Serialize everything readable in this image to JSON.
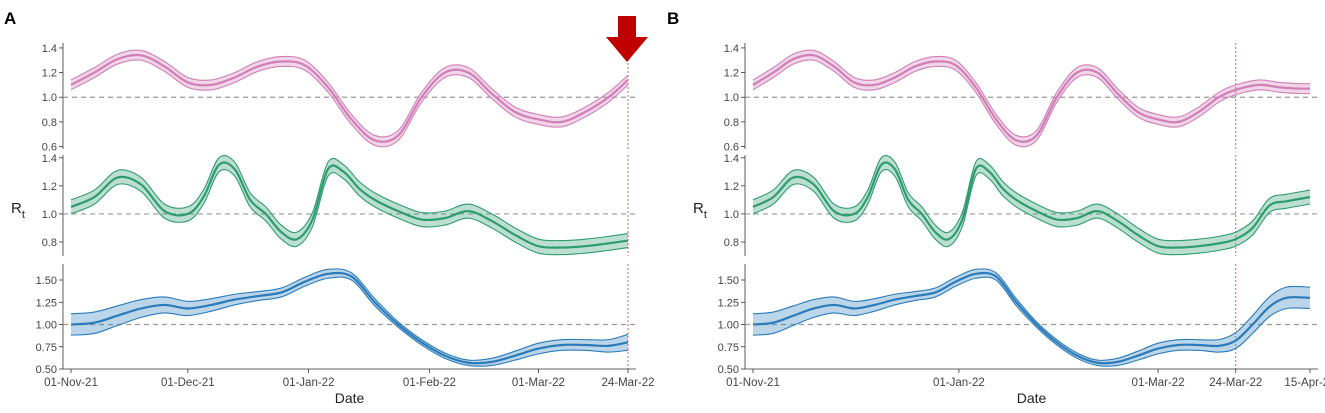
{
  "chart_data": [
    {
      "type": "line",
      "panel_label": "A",
      "xlabel": "Date",
      "ylabel": "Rt",
      "x_range_days": [
        0,
        143
      ],
      "x_ticks": [
        {
          "day": 0,
          "label": "01-Nov-21"
        },
        {
          "day": 30,
          "label": "01-Dec-21"
        },
        {
          "day": 61,
          "label": "01-Jan-22"
        },
        {
          "day": 92,
          "label": "01-Feb-22"
        },
        {
          "day": 120,
          "label": "01-Mar-22"
        },
        {
          "day": 143,
          "label": "24-Mar-22"
        }
      ],
      "vline_day": 143,
      "annotation": "down-arrow marking 24-Mar-22",
      "series": [
        {
          "name": "series-1",
          "color": "#d17fb7",
          "ylim": [
            0.58,
            1.44
          ],
          "yticks": [
            "0.6",
            "0.8",
            "1.0",
            "1.2",
            "1.4"
          ],
          "x": [
            0,
            6,
            12,
            18,
            24,
            30,
            36,
            42,
            48,
            54,
            60,
            66,
            72,
            78,
            84,
            90,
            96,
            102,
            108,
            114,
            120,
            126,
            132,
            138,
            143
          ],
          "mean": [
            1.1,
            1.2,
            1.31,
            1.34,
            1.25,
            1.12,
            1.1,
            1.16,
            1.25,
            1.29,
            1.26,
            1.08,
            0.82,
            0.65,
            0.69,
            1.0,
            1.2,
            1.2,
            1.03,
            0.88,
            0.82,
            0.8,
            0.88,
            1.0,
            1.14
          ],
          "halfwidth": 0.04
        },
        {
          "name": "series-2",
          "color": "#2e9c6f",
          "ylim": [
            0.7,
            1.42
          ],
          "yticks": [
            "0.8",
            "1.0",
            "1.2",
            "1.4"
          ],
          "x": [
            0,
            6,
            12,
            18,
            24,
            30,
            34,
            38,
            42,
            46,
            50,
            54,
            58,
            62,
            66,
            70,
            74,
            78,
            84,
            90,
            96,
            102,
            108,
            114,
            120,
            126,
            132,
            138,
            143
          ],
          "mean": [
            1.05,
            1.12,
            1.26,
            1.21,
            1.02,
            1.0,
            1.12,
            1.35,
            1.32,
            1.1,
            1.0,
            0.87,
            0.82,
            0.96,
            1.32,
            1.3,
            1.18,
            1.1,
            1.02,
            0.96,
            0.97,
            1.02,
            0.95,
            0.85,
            0.77,
            0.76,
            0.77,
            0.79,
            0.81
          ],
          "halfwidth": 0.05
        },
        {
          "name": "series-3",
          "color": "#2b7bba",
          "ylim": [
            0.5,
            1.68
          ],
          "yticks": [
            "0.50",
            "0.75",
            "1.00",
            "1.25",
            "1.50"
          ],
          "x": [
            0,
            6,
            12,
            18,
            24,
            30,
            36,
            42,
            48,
            54,
            60,
            66,
            72,
            78,
            84,
            90,
            96,
            102,
            108,
            114,
            120,
            126,
            132,
            138,
            143
          ],
          "mean": [
            1.0,
            1.02,
            1.1,
            1.18,
            1.22,
            1.18,
            1.22,
            1.28,
            1.32,
            1.36,
            1.48,
            1.57,
            1.54,
            1.25,
            1.0,
            0.8,
            0.65,
            0.57,
            0.58,
            0.65,
            0.73,
            0.77,
            0.77,
            0.76,
            0.8
          ],
          "halfwidth": [
            0.12,
            0.12,
            0.11,
            0.1,
            0.09,
            0.08,
            0.07,
            0.06,
            0.05,
            0.05,
            0.05,
            0.05,
            0.04,
            0.04,
            0.03,
            0.03,
            0.03,
            0.03,
            0.04,
            0.05,
            0.06,
            0.06,
            0.06,
            0.07,
            0.09
          ]
        }
      ]
    },
    {
      "type": "line",
      "panel_label": "B",
      "xlabel": "Date",
      "ylabel": "Rt",
      "x_range_days": [
        0,
        165
      ],
      "x_ticks": [
        {
          "day": 0,
          "label": "01-Nov-21"
        },
        {
          "day": 61,
          "label": "01-Jan-22"
        },
        {
          "day": 120,
          "label": "01-Mar-22"
        },
        {
          "day": 143,
          "label": "24-Mar-22"
        },
        {
          "day": 165,
          "label": "15-Apr-22"
        }
      ],
      "vline_day": 143,
      "series": [
        {
          "name": "series-1",
          "color": "#d17fb7",
          "ylim": [
            0.58,
            1.44
          ],
          "yticks": [
            "0.6",
            "0.8",
            "1.0",
            "1.2",
            "1.4"
          ],
          "x": [
            0,
            6,
            12,
            18,
            24,
            30,
            36,
            42,
            48,
            54,
            60,
            66,
            72,
            78,
            84,
            90,
            96,
            102,
            108,
            114,
            120,
            126,
            132,
            138,
            143,
            150,
            156,
            162,
            165
          ],
          "mean": [
            1.1,
            1.2,
            1.31,
            1.34,
            1.25,
            1.12,
            1.1,
            1.16,
            1.25,
            1.29,
            1.26,
            1.08,
            0.82,
            0.65,
            0.69,
            1.0,
            1.2,
            1.2,
            1.03,
            0.88,
            0.82,
            0.8,
            0.88,
            1.0,
            1.06,
            1.1,
            1.08,
            1.07,
            1.07
          ],
          "halfwidth": 0.04
        },
        {
          "name": "series-2",
          "color": "#2e9c6f",
          "ylim": [
            0.7,
            1.42
          ],
          "yticks": [
            "0.8",
            "1.0",
            "1.2",
            "1.4"
          ],
          "x": [
            0,
            6,
            12,
            18,
            24,
            30,
            34,
            38,
            42,
            46,
            50,
            54,
            58,
            62,
            66,
            70,
            74,
            78,
            84,
            90,
            96,
            102,
            108,
            114,
            120,
            126,
            132,
            138,
            143,
            148,
            153,
            158,
            165
          ],
          "mean": [
            1.05,
            1.12,
            1.26,
            1.21,
            1.02,
            1.0,
            1.12,
            1.35,
            1.32,
            1.1,
            1.0,
            0.87,
            0.82,
            0.96,
            1.32,
            1.3,
            1.18,
            1.1,
            1.02,
            0.96,
            0.97,
            1.02,
            0.95,
            0.85,
            0.77,
            0.76,
            0.77,
            0.79,
            0.82,
            0.9,
            1.06,
            1.09,
            1.12
          ],
          "halfwidth": 0.05
        },
        {
          "name": "series-3",
          "color": "#2b7bba",
          "ylim": [
            0.5,
            1.68
          ],
          "yticks": [
            "0.50",
            "0.75",
            "1.00",
            "1.25",
            "1.50"
          ],
          "x": [
            0,
            6,
            12,
            18,
            24,
            30,
            36,
            42,
            48,
            54,
            60,
            66,
            72,
            78,
            84,
            90,
            96,
            102,
            108,
            114,
            120,
            126,
            132,
            138,
            143,
            148,
            153,
            158,
            165
          ],
          "mean": [
            1.0,
            1.02,
            1.1,
            1.18,
            1.22,
            1.18,
            1.22,
            1.28,
            1.32,
            1.36,
            1.48,
            1.57,
            1.54,
            1.25,
            1.0,
            0.8,
            0.65,
            0.57,
            0.58,
            0.65,
            0.73,
            0.77,
            0.77,
            0.76,
            0.82,
            1.0,
            1.2,
            1.3,
            1.3
          ],
          "halfwidth": [
            0.12,
            0.12,
            0.11,
            0.1,
            0.09,
            0.08,
            0.07,
            0.06,
            0.05,
            0.05,
            0.05,
            0.05,
            0.04,
            0.04,
            0.03,
            0.03,
            0.03,
            0.03,
            0.04,
            0.05,
            0.06,
            0.06,
            0.06,
            0.07,
            0.09,
            0.1,
            0.11,
            0.12,
            0.12
          ]
        }
      ]
    }
  ],
  "colors": {
    "axis": "#333333",
    "tick_text": "#444444",
    "refline": "#9a9a9a",
    "vline": "#e06060",
    "arrow": "#c00000"
  }
}
